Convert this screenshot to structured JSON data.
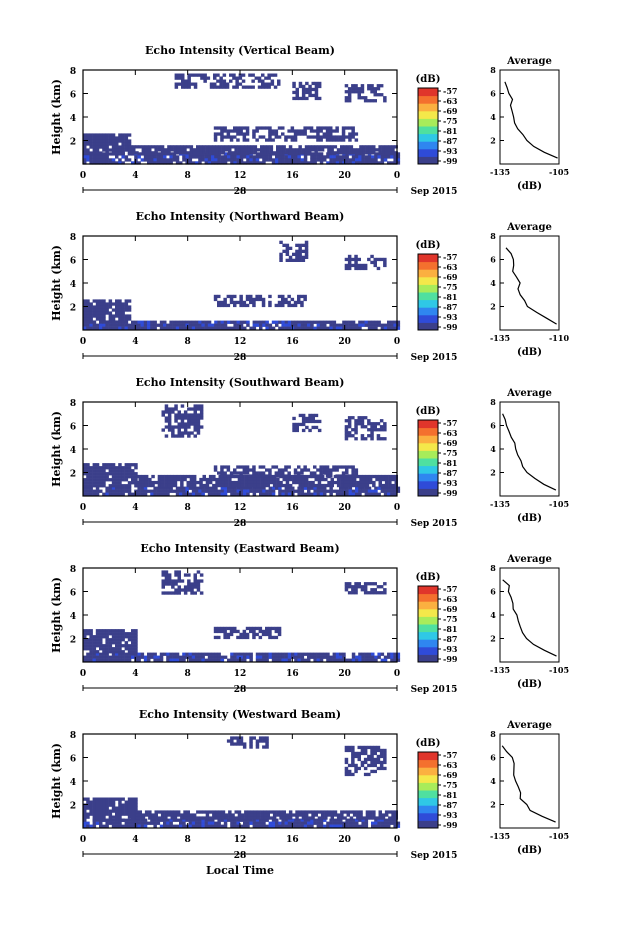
{
  "figure": {
    "xlabel": "Local Time",
    "date_label": "Sep 2015",
    "day_label": "28",
    "x_ticks": [
      "0",
      "4",
      "8",
      "12",
      "16",
      "20",
      "0"
    ],
    "y_label": "Height (km)",
    "y_ticks": [
      "2",
      "4",
      "6",
      "8"
    ],
    "colorbar_unit": "(dB)",
    "colorbar_ticks": [
      "-57",
      "-63",
      "-69",
      "-75",
      "-81",
      "-87",
      "-93",
      "-99"
    ],
    "colorbar_colors": [
      "#3b3f8a",
      "#2f4bd8",
      "#2f86f0",
      "#2fc8e6",
      "#4fe0a0",
      "#a8ec5a",
      "#f4e84a",
      "#fbb040",
      "#f4702e",
      "#e0352b"
    ],
    "echo_color": "#3b3f8a",
    "strong_color": "#2f4bd8",
    "avg_title": "Average",
    "avg_xlabel": "(dB)"
  },
  "chart_data": [
    {
      "type": "heatmap",
      "title": "Echo Intensity (Vertical Beam)",
      "xlabel": "",
      "ylabel": "Height (km)",
      "xlim": [
        0,
        24
      ],
      "ylim": [
        0,
        8
      ],
      "units": "dB",
      "colorbar_range": [
        -99,
        -57
      ],
      "echo_regions": [
        {
          "t": [
            0,
            24
          ],
          "h": [
            0.1,
            1.0
          ]
        },
        {
          "t": [
            0,
            3.5
          ],
          "h": [
            1.0,
            2.6
          ]
        },
        {
          "t": [
            3.5,
            24
          ],
          "h": [
            1.0,
            1.6
          ]
        },
        {
          "t": [
            10,
            21
          ],
          "h": [
            2.0,
            3.2
          ]
        },
        {
          "t": [
            7,
            15
          ],
          "h": [
            6.5,
            7.7
          ]
        },
        {
          "t": [
            16,
            18
          ],
          "h": [
            5.5,
            7.0
          ]
        },
        {
          "t": [
            20,
            23
          ],
          "h": [
            5.5,
            6.8
          ]
        }
      ],
      "average_profile": {
        "title": "Average",
        "xlabel": "(dB)",
        "x_ticks": [
          "-135",
          "-105"
        ],
        "xlim": [
          -135,
          -105
        ],
        "ylim": [
          0,
          8
        ],
        "height_km": [
          0.5,
          1,
          1.5,
          2,
          2.5,
          3,
          3.5,
          4,
          4.5,
          5,
          5.5,
          6,
          6.5,
          7
        ],
        "db": [
          -106,
          -112,
          -118,
          -122,
          -124,
          -126,
          -127,
          -128,
          -128.5,
          -129,
          -129,
          -130,
          -131,
          -132
        ]
      }
    },
    {
      "type": "heatmap",
      "title": "Echo Intensity (Northward Beam)",
      "xlabel": "",
      "ylabel": "Height (km)",
      "xlim": [
        0,
        24
      ],
      "ylim": [
        0,
        8
      ],
      "units": "dB",
      "colorbar_range": [
        -99,
        -57
      ],
      "echo_regions": [
        {
          "t": [
            0,
            24
          ],
          "h": [
            0.1,
            0.8
          ]
        },
        {
          "t": [
            0,
            3.5
          ],
          "h": [
            0.8,
            2.6
          ]
        },
        {
          "t": [
            10,
            17
          ],
          "h": [
            2.0,
            3.0
          ]
        },
        {
          "t": [
            15,
            17
          ],
          "h": [
            6.0,
            7.6
          ]
        },
        {
          "t": [
            20,
            23
          ],
          "h": [
            5.2,
            6.4
          ]
        }
      ],
      "average_profile": {
        "title": "Average",
        "xlabel": "(dB)",
        "x_ticks": [
          "-135",
          "-110"
        ],
        "xlim": [
          -135,
          -110
        ],
        "ylim": [
          0,
          8
        ],
        "height_km": [
          0.5,
          1,
          1.5,
          2,
          2.5,
          3,
          3.5,
          4,
          4.5,
          5,
          5.5,
          6,
          6.5,
          7
        ],
        "db": [
          -111,
          -115,
          -119,
          -123,
          -125,
          -127,
          -128,
          -127,
          -128,
          -129,
          -129.5,
          -130,
          -131,
          -133
        ]
      }
    },
    {
      "type": "heatmap",
      "title": "Echo Intensity (Southward Beam)",
      "xlabel": "",
      "ylabel": "Height (km)",
      "xlim": [
        0,
        24
      ],
      "ylim": [
        0,
        8
      ],
      "units": "dB",
      "colorbar_range": [
        -99,
        -57
      ],
      "echo_regions": [
        {
          "t": [
            0,
            24
          ],
          "h": [
            0.1,
            0.8
          ]
        },
        {
          "t": [
            0,
            4
          ],
          "h": [
            0.8,
            2.8
          ]
        },
        {
          "t": [
            4,
            24
          ],
          "h": [
            0.8,
            1.8
          ]
        },
        {
          "t": [
            10,
            21
          ],
          "h": [
            1.8,
            2.6
          ]
        },
        {
          "t": [
            6,
            9
          ],
          "h": [
            5.0,
            7.8
          ]
        },
        {
          "t": [
            16,
            18
          ],
          "h": [
            5.5,
            7.0
          ]
        },
        {
          "t": [
            20,
            23
          ],
          "h": [
            5.0,
            6.8
          ]
        }
      ],
      "average_profile": {
        "title": "Average",
        "xlabel": "(dB)",
        "x_ticks": [
          "-135",
          "-105"
        ],
        "xlim": [
          -135,
          -105
        ],
        "ylim": [
          0,
          8
        ],
        "height_km": [
          0.5,
          1,
          1.5,
          2,
          2.5,
          3,
          3.5,
          4,
          4.5,
          5,
          5.5,
          6,
          6.5,
          7
        ],
        "db": [
          -107,
          -112,
          -117,
          -121,
          -123,
          -125,
          -126,
          -127,
          -128,
          -129,
          -130,
          -131,
          -132,
          -133
        ]
      }
    },
    {
      "type": "heatmap",
      "title": "Echo Intensity (Eastward Beam)",
      "xlabel": "",
      "ylabel": "Height (km)",
      "xlim": [
        0,
        24
      ],
      "ylim": [
        0,
        8
      ],
      "units": "dB",
      "colorbar_range": [
        -99,
        -57
      ],
      "echo_regions": [
        {
          "t": [
            0,
            24
          ],
          "h": [
            0.1,
            0.8
          ]
        },
        {
          "t": [
            0,
            4
          ],
          "h": [
            0.8,
            2.8
          ]
        },
        {
          "t": [
            10,
            15
          ],
          "h": [
            2.0,
            3.0
          ]
        },
        {
          "t": [
            6,
            9
          ],
          "h": [
            6.0,
            7.8
          ]
        },
        {
          "t": [
            20,
            23
          ],
          "h": [
            6.0,
            6.8
          ]
        }
      ],
      "average_profile": {
        "title": "Average",
        "xlabel": "(dB)",
        "x_ticks": [
          "-135",
          "-105"
        ],
        "xlim": [
          -135,
          -105
        ],
        "ylim": [
          0,
          8
        ],
        "height_km": [
          0.5,
          1,
          1.5,
          2,
          2.5,
          3,
          3.5,
          4,
          4.5,
          5,
          5.5,
          6,
          6.5,
          7
        ],
        "db": [
          -107,
          -113,
          -118,
          -121,
          -123,
          -124,
          -126,
          -127,
          -128,
          -129,
          -129.5,
          -130,
          -131,
          -133
        ]
      }
    },
    {
      "type": "heatmap",
      "title": "Echo Intensity (Westward Beam)",
      "xlabel": "Local Time",
      "ylabel": "Height (km)",
      "xlim": [
        0,
        24
      ],
      "ylim": [
        0,
        8
      ],
      "units": "dB",
      "colorbar_range": [
        -99,
        -57
      ],
      "echo_regions": [
        {
          "t": [
            0,
            24
          ],
          "h": [
            0.1,
            0.8
          ]
        },
        {
          "t": [
            0,
            4
          ],
          "h": [
            0.8,
            2.6
          ]
        },
        {
          "t": [
            4,
            24
          ],
          "h": [
            0.8,
            1.5
          ]
        },
        {
          "t": [
            11,
            14
          ],
          "h": [
            7.0,
            7.8
          ]
        },
        {
          "t": [
            20,
            23
          ],
          "h": [
            4.5,
            7.0
          ]
        }
      ],
      "average_profile": {
        "title": "Average",
        "xlabel": "(dB)",
        "x_ticks": [
          "-135",
          "-105"
        ],
        "xlim": [
          -135,
          -105
        ],
        "ylim": [
          0,
          8
        ],
        "height_km": [
          0.5,
          1,
          1.5,
          2,
          2.5,
          3,
          3.5,
          4,
          4.5,
          5,
          5.5,
          6,
          6.5,
          7
        ],
        "db": [
          -107,
          -114,
          -119,
          -122,
          -124,
          -125,
          -126,
          -127,
          -127.5,
          -128,
          -128.5,
          -129,
          -131,
          -134
        ]
      }
    }
  ]
}
